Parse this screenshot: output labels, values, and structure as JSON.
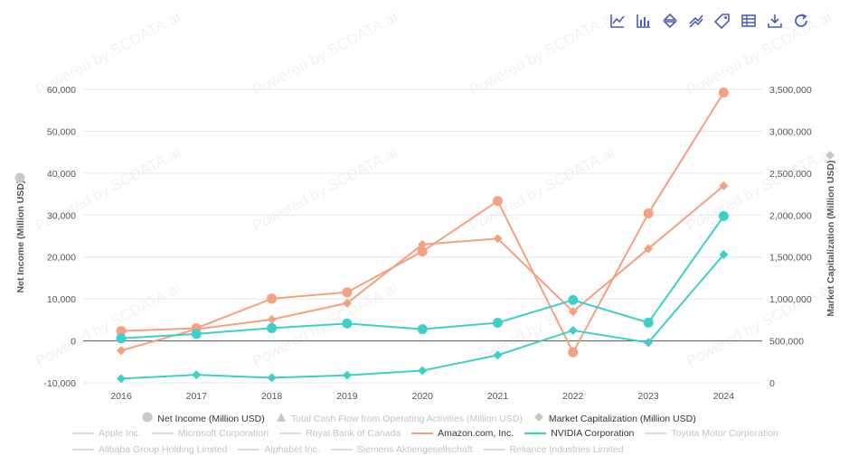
{
  "watermark": "Powered by SCDATA.ai",
  "toolbar": {
    "icons": [
      "line-chart-icon",
      "bar-chart-icon",
      "sort-icon",
      "stack-icon",
      "tag-icon",
      "table-icon",
      "download-icon",
      "refresh-icon"
    ],
    "color": "#4a5fb0"
  },
  "chart_data": {
    "type": "line",
    "categories": [
      "2016",
      "2017",
      "2018",
      "2019",
      "2020",
      "2021",
      "2022",
      "2023",
      "2024"
    ],
    "left_axis": {
      "label": "Net Income (Million USD)",
      "ticks": [
        "60,000",
        "50,000",
        "40,000",
        "30,000",
        "20,000",
        "10,000",
        "0",
        "-10,000"
      ],
      "range": [
        -10000,
        60000
      ]
    },
    "right_axis": {
      "label": "Market Capitalization (Million USD)",
      "ticks": [
        "3,500,000",
        "3,000,000",
        "2,500,000",
        "2,000,000",
        "1,500,000",
        "1,000,000",
        "500,000",
        "0"
      ],
      "range": [
        0,
        3500000
      ]
    },
    "series": [
      {
        "name": "Amazon.com, Inc. - Net Income",
        "company": "Amazon.com, Inc.",
        "measure": "net_income",
        "axis": "left",
        "color": "#f5a07f",
        "marker": "circle",
        "values": [
          2371,
          3033,
          10073,
          11588,
          21331,
          33364,
          -2722,
          30425,
          59248
        ]
      },
      {
        "name": "Amazon.com, Inc. - Market Capitalization",
        "company": "Amazon.com, Inc.",
        "measure": "market_cap",
        "axis": "right",
        "color": "#f5a07f",
        "marker": "diamond",
        "values": [
          385000,
          640000,
          755000,
          950000,
          1650000,
          1720000,
          850000,
          1600000,
          2350000
        ]
      },
      {
        "name": "NVIDIA Corporation - Net Income",
        "company": "NVIDIA Corporation",
        "measure": "net_income",
        "axis": "left",
        "color": "#3ed0c8",
        "marker": "circle",
        "values": [
          614,
          1666,
          3047,
          4141,
          2796,
          4332,
          9752,
          4368,
          29760
        ]
      },
      {
        "name": "NVIDIA Corporation - Market Capitalization",
        "company": "NVIDIA Corporation",
        "measure": "market_cap",
        "axis": "right",
        "color": "#3ed0c8",
        "marker": "diamond",
        "values": [
          50000,
          95000,
          60000,
          90000,
          145000,
          330000,
          625000,
          480000,
          1530000
        ]
      }
    ]
  },
  "legend": {
    "measures": [
      {
        "label": "Net Income (Million USD)",
        "shape": "circle",
        "active": true
      },
      {
        "label": "Total Cash Flow from Operating Activities (Million USD)",
        "shape": "triangle",
        "active": false
      },
      {
        "label": "Market Capitalization (Million USD)",
        "shape": "diamond",
        "active": true
      }
    ],
    "companies_row1": [
      {
        "label": "Apple Inc.",
        "color": "#dddddd",
        "active": false
      },
      {
        "label": "Microsoft Corporation",
        "color": "#dddddd",
        "active": false
      },
      {
        "label": "Royal Bank of Canada",
        "color": "#dddddd",
        "active": false
      },
      {
        "label": "Amazon.com, Inc.",
        "color": "#f5a07f",
        "active": true
      },
      {
        "label": "NVIDIA Corporation",
        "color": "#3ed0c8",
        "active": true
      },
      {
        "label": "Toyota Motor Corporation",
        "color": "#dddddd",
        "active": false
      }
    ],
    "companies_row2": [
      {
        "label": "Alibaba Group Holding Limited",
        "color": "#dddddd",
        "active": false
      },
      {
        "label": "Alphabet Inc.",
        "color": "#dddddd",
        "active": false
      },
      {
        "label": "Siemens Aktiengesellschaft",
        "color": "#dddddd",
        "active": false
      },
      {
        "label": "Reliance Industries Limited",
        "color": "#dddddd",
        "active": false
      }
    ]
  }
}
